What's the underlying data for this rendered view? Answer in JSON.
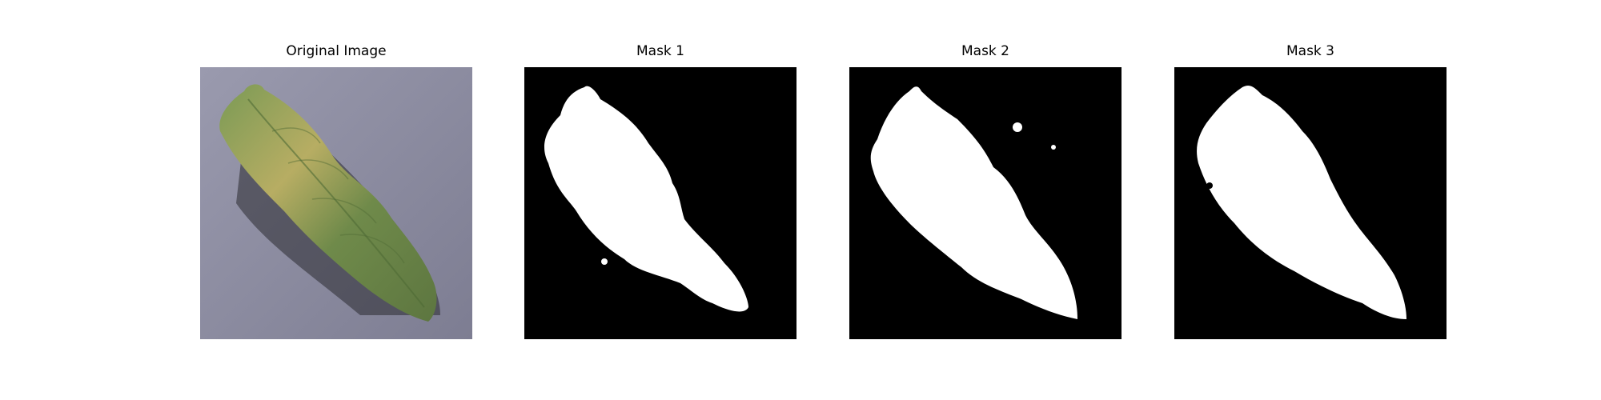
{
  "figure": {
    "panels": [
      {
        "title": "Original Image",
        "kind": "photo",
        "subject": "leaf"
      },
      {
        "title": "Mask 1",
        "kind": "mask"
      },
      {
        "title": "Mask 2",
        "kind": "mask"
      },
      {
        "title": "Mask 3",
        "kind": "mask"
      }
    ]
  },
  "colors": {
    "mask_background": "#000000",
    "mask_foreground": "#ffffff",
    "photo_background": "#8a8aa0",
    "leaf_green": "#6f8a4a",
    "leaf_yellow": "#b9b060",
    "shadow": "#2a2a30"
  }
}
